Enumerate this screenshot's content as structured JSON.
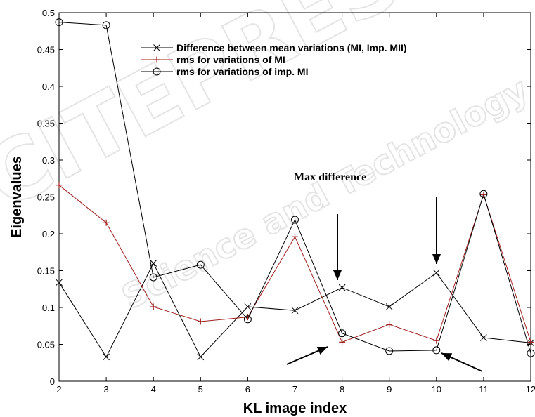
{
  "chart_data": {
    "type": "line",
    "title": "",
    "xlabel": "KL image index",
    "ylabel": "Eigenvalues",
    "xlim": [
      2,
      12
    ],
    "ylim": [
      0,
      0.5
    ],
    "x_ticks": [
      2,
      3,
      4,
      5,
      6,
      7,
      8,
      9,
      10,
      11,
      12
    ],
    "y_ticks": [
      0,
      0.05,
      0.1,
      0.15,
      0.2,
      0.25,
      0.3,
      0.35,
      0.4,
      0.45,
      0.5
    ],
    "x_tick_labels": [
      "2",
      "3",
      "4",
      "5",
      "6",
      "7",
      "8",
      "9",
      "10",
      "11",
      "12"
    ],
    "y_tick_labels": [
      "0",
      "0.05",
      "0.1",
      "0.15",
      "0.2",
      "0.25",
      "0.3",
      "0.35",
      "0.4",
      "0.45",
      "0.5"
    ],
    "legend_position": "top-right",
    "grid": false,
    "x": [
      2,
      3,
      4,
      5,
      6,
      7,
      8,
      9,
      10,
      11,
      12
    ],
    "series": [
      {
        "name": "Difference between mean variations (MI, Imp. MII)",
        "marker": "x",
        "color": "#000000",
        "values": [
          0.134,
          0.033,
          0.16,
          0.033,
          0.101,
          0.096,
          0.127,
          0.101,
          0.147,
          0.059,
          0.052
        ]
      },
      {
        "name": "rms for variations of MI",
        "marker": "+",
        "color": "#a02020",
        "values": [
          0.266,
          0.215,
          0.101,
          0.081,
          0.087,
          0.196,
          0.053,
          0.077,
          0.055,
          0.253,
          0.053
        ]
      },
      {
        "name": "rms for variations of imp. MI",
        "marker": "o",
        "color": "#000000",
        "values": [
          0.487,
          0.483,
          0.141,
          0.158,
          0.084,
          0.219,
          0.065,
          0.041,
          0.042,
          0.254,
          0.038
        ]
      }
    ],
    "annotations": [
      {
        "text": "Max difference"
      }
    ]
  }
}
